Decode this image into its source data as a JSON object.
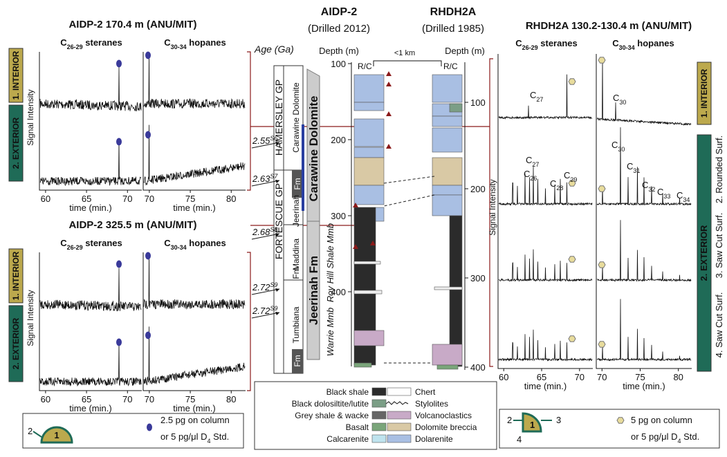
{
  "common": {
    "steranes": {
      "base": "C",
      "sub": "26-29",
      "label": " steranes"
    },
    "hopanes": {
      "base": "C",
      "sub": "30-34",
      "label": " hopanes"
    },
    "interior": "1. INTERIOR",
    "exterior": "2. EXTERIOR",
    "ylabel": "Signal Intensity",
    "xlabel": "time (min.)",
    "xticks_steranes": [
      60,
      65,
      70
    ],
    "xticks_hopanes": [
      70,
      75,
      80
    ],
    "std_line2": {
      "text": "or 5 pg/μl D",
      "sub": "4",
      "end": " Std."
    }
  },
  "left": {
    "titles": [
      "AIDP-2 170.4 m (ANU/MIT)",
      "AIDP-2 325.5 m (ANU/MIT)"
    ],
    "legend": {
      "outer": "2",
      "inner": "1",
      "line1": "2.5 pg on column"
    }
  },
  "strat": {
    "age_label": "Age (Ga)",
    "groups": [
      "HAMERSLEY GP",
      "FORTESCUE GP"
    ],
    "formations": [
      "Carawine Dolomite",
      "Jeerinah",
      "Fm",
      "Maddina",
      "Fm",
      "Tumbiana",
      "Fm"
    ],
    "ages": [
      {
        "age": 2.55,
        "sup": "S6"
      },
      {
        "age": 2.63,
        "sup": "S7"
      },
      {
        "age": 2.68,
        "sup": "S8"
      },
      {
        "age": 2.72,
        "sup": "S9"
      },
      {
        "age": 2.72,
        "sup": "S9"
      }
    ],
    "units": [
      "Carawine Dolomite",
      "Jeerinah Fm"
    ],
    "members": [
      "Warrie Mmb",
      "Roy Hill Shale Mmb"
    ],
    "cores": [
      {
        "name": "AIDP-2",
        "drilled": "(Drilled 2012)",
        "depth_label": "Depth (m)",
        "rc": "R/C",
        "depth_ticks": [
          100,
          200,
          300,
          400
        ]
      },
      {
        "name": "RHDH2A",
        "drilled": "(Drilled 1985)",
        "depth_label": "Depth (m)",
        "rc": "R/C",
        "depth_ticks": [
          100,
          200,
          300,
          400
        ]
      }
    ],
    "distance": "<1 km",
    "legend": [
      "Black shale",
      "Black dolosiltite/lutite",
      "Grey shale & wacke",
      "Basalt",
      "Calcarenite",
      "Chert",
      "Stylolites",
      "Volcanoclastics",
      "Dolomite breccia",
      "Dolarenite"
    ]
  },
  "right": {
    "title": "RHDH2A 130.2-130.4 m (ANU/MIT)",
    "surfaces": [
      "2. Rounded Surf.",
      "3. Saw Cut Surf.",
      "4. Saw Cut Surf."
    ],
    "peaks_row1": [
      {
        "base": "C",
        "sub": "27"
      },
      {
        "base": "C",
        "sub": "30"
      }
    ],
    "peaks_row2": [
      {
        "base": "C",
        "sub": "27"
      },
      {
        "base": "C",
        "sub": "26"
      },
      {
        "base": "C",
        "sub": "28"
      },
      {
        "base": "C",
        "sub": "29"
      },
      {
        "base": "C",
        "sub": "30"
      },
      {
        "base": "C",
        "sub": "31"
      },
      {
        "base": "C",
        "sub": "32"
      },
      {
        "base": "C",
        "sub": "33"
      },
      {
        "base": "C",
        "sub": "34"
      }
    ],
    "legend": {
      "labels": [
        "2",
        "1",
        "3",
        "4"
      ],
      "line1": "5 pg on column"
    }
  }
}
